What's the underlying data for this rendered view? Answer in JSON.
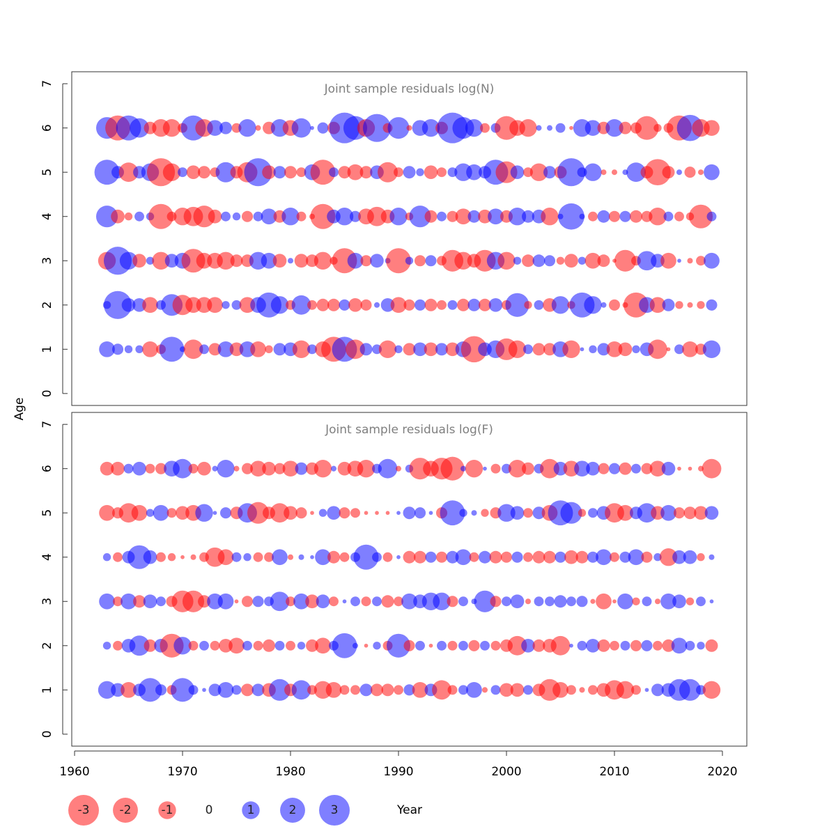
{
  "figure": {
    "xlabel": "Year",
    "ylabel": "Age",
    "positive_color": "#0000ff",
    "negative_color": "#ff0000",
    "alpha": 0.5,
    "legend": {
      "values": [
        -3,
        -2,
        -1,
        0,
        1,
        2,
        3
      ]
    }
  },
  "chart_data": [
    {
      "type": "bubble",
      "title": "Joint sample residuals log(N)",
      "x": [
        1963,
        1964,
        1965,
        1966,
        1967,
        1968,
        1969,
        1970,
        1971,
        1972,
        1973,
        1974,
        1975,
        1976,
        1977,
        1978,
        1979,
        1980,
        1981,
        1982,
        1983,
        1984,
        1985,
        1986,
        1987,
        1988,
        1989,
        1990,
        1991,
        1992,
        1993,
        1994,
        1995,
        1996,
        1997,
        1998,
        1999,
        2000,
        2001,
        2002,
        2003,
        2004,
        2005,
        2006,
        2007,
        2008,
        2009,
        2010,
        2011,
        2012,
        2013,
        2014,
        2015,
        2016,
        2017,
        2018,
        2019
      ],
      "y": [
        1,
        2,
        3,
        4,
        5,
        6
      ],
      "values": [
        [
          0.8,
          0.4,
          0.2,
          0.2,
          -0.8,
          -0.3,
          2,
          0.1,
          -1.2,
          0.3,
          -0.5,
          0.8,
          -0.6,
          0.8,
          -0.8,
          -0.2,
          0.5,
          0.6,
          -1,
          0.3,
          -0.8,
          -2,
          2,
          -1.2,
          0.5,
          0.3,
          -1,
          0.2,
          -0.5,
          0.6,
          -0.6,
          0.5,
          -0.6,
          0.8,
          -2.2,
          0.6,
          1,
          -1.5,
          -1,
          0.3,
          -0.5,
          -0.5,
          0.8,
          -1,
          0.05,
          0.2,
          0.5,
          -0.8,
          -0.6,
          0.2,
          0.6,
          -1.2,
          -0.05,
          0.3,
          -0.8,
          -0.4,
          1
        ],
        [
          0.2,
          2.5,
          0.6,
          0.6,
          -0.8,
          0.3,
          1.5,
          -1.3,
          -0.8,
          -0.8,
          -0.8,
          0.2,
          0.3,
          -0.8,
          0.8,
          2,
          1,
          -0.3,
          1.2,
          -0.3,
          -0.5,
          -0.5,
          0.4,
          -0.6,
          -0.4,
          0.1,
          0.6,
          -0.8,
          -0.4,
          0.4,
          -0.5,
          -0.3,
          0.3,
          -0.5,
          0.5,
          -0.5,
          0.6,
          -0.3,
          1.8,
          -0.2,
          0.3,
          -0.6,
          1,
          -0.2,
          2,
          1,
          0.1,
          -0.4,
          -0.1,
          -2,
          0.8,
          -0.8,
          0.5,
          -0.2,
          -0.1,
          -0.2,
          0.4
        ],
        [
          -1,
          2.5,
          1,
          -0.6,
          0.2,
          -1,
          0.6,
          0.8,
          -1.8,
          -0.8,
          -0.8,
          -1,
          -0.5,
          -0.5,
          1,
          0.8,
          -0.6,
          0.1,
          -0.6,
          -0.5,
          -1,
          -0.2,
          -2,
          0.8,
          -0.4,
          0.6,
          0.1,
          -2,
          0.2,
          -0.4,
          0.4,
          -0.3,
          -1.5,
          -1,
          -0.6,
          -1.5,
          1,
          -1,
          0.2,
          -0.5,
          0.5,
          0.4,
          -0.2,
          -0.6,
          0.2,
          -0.8,
          -0.5,
          -0.05,
          -1.5,
          -0.3,
          1.2,
          0.6,
          -0.8,
          0.05,
          -0.1,
          -0.3,
          0.8
        ],
        [
          1.5,
          -0.6,
          -0.2,
          0.3,
          0.2,
          -2,
          -0.3,
          -1,
          -1.2,
          -1.5,
          -0.6,
          0.3,
          0.2,
          -0.4,
          0.3,
          0.8,
          -0.5,
          1,
          -0.3,
          -0.1,
          -2,
          0.6,
          1,
          0.4,
          -0.8,
          -1.2,
          -0.6,
          1,
          -0.2,
          1.5,
          -0.5,
          0.3,
          -0.4,
          -0.8,
          0.5,
          -0.6,
          0.8,
          -0.5,
          1,
          0.5,
          0.6,
          -1,
          0.1,
          2.2,
          0.1,
          -0.3,
          0.5,
          -0.4,
          0.4,
          -0.5,
          -0.4,
          -1,
          0.3,
          -0.3,
          -0.2,
          -1.8,
          0.3
        ],
        [
          2,
          0.5,
          -1.2,
          0.5,
          1,
          -2.5,
          -1,
          0.3,
          -0.6,
          -0.5,
          -0.3,
          1.3,
          -0.5,
          -1.3,
          2.5,
          -0.6,
          0.5,
          -0.5,
          -0.3,
          0.8,
          -2,
          0.3,
          -0.5,
          -0.8,
          -0.5,
          0.6,
          -1.3,
          -0.3,
          0.5,
          0.2,
          -0.6,
          -0.3,
          0.3,
          1,
          0.8,
          0.5,
          2,
          -1.5,
          0.6,
          -0.3,
          -1,
          0.5,
          -0.5,
          2.5,
          0.3,
          1,
          -0.1,
          -0.1,
          0.1,
          1.2,
          -0.5,
          -2.2,
          -0.5,
          0.1,
          -0.4,
          -0.1,
          0.8
        ],
        [
          1.5,
          -2,
          2,
          1.2,
          -0.5,
          -1,
          -1,
          -0.3,
          2,
          -1,
          0.8,
          0.5,
          -0.3,
          1,
          -0.1,
          -0.5,
          1,
          -0.8,
          1.2,
          0.05,
          0.4,
          -0.5,
          3,
          1.8,
          -1,
          2.5,
          -0.3,
          1.5,
          -0.1,
          0.8,
          1,
          -0.5,
          3,
          1.5,
          1,
          -0.3,
          0.3,
          -1.8,
          -0.8,
          -1,
          0.1,
          0.1,
          0.3,
          -0.05,
          1,
          0.8,
          -0.5,
          1,
          -0.5,
          -0.4,
          -1.8,
          -0.2,
          -0.3,
          -2,
          2.2,
          -1,
          -0.8
        ]
      ],
      "xlim": [
        1959.74,
        2022.26
      ],
      "ylim": [
        -0.27,
        7.27
      ],
      "yticks": [
        0,
        1,
        2,
        3,
        4,
        5,
        6,
        7
      ]
    },
    {
      "type": "bubble",
      "title": "Joint sample residuals log(F)",
      "x": [
        1963,
        1964,
        1965,
        1966,
        1967,
        1968,
        1969,
        1970,
        1971,
        1972,
        1973,
        1974,
        1975,
        1976,
        1977,
        1978,
        1979,
        1980,
        1981,
        1982,
        1983,
        1984,
        1985,
        1986,
        1987,
        1988,
        1989,
        1990,
        1991,
        1992,
        1993,
        1994,
        1995,
        1996,
        1997,
        1998,
        1999,
        2000,
        2001,
        2002,
        2003,
        2004,
        2005,
        2006,
        2007,
        2008,
        2009,
        2010,
        2011,
        2012,
        2013,
        2014,
        2015,
        2016,
        2017,
        2018,
        2019
      ],
      "y": [
        1,
        2,
        3,
        4,
        5,
        6
      ],
      "values": [
        [
          1,
          0.6,
          -0.8,
          0.5,
          1.8,
          0.4,
          -0.3,
          1.8,
          0.3,
          0.05,
          0.5,
          0.8,
          0.3,
          -0.5,
          0.5,
          -0.6,
          1.5,
          -0.5,
          1.2,
          -0.3,
          -1,
          -0.8,
          -0.3,
          -0.3,
          0.5,
          -0.5,
          -0.5,
          -0.3,
          0.4,
          -0.8,
          0.5,
          -1.2,
          -0.3,
          0.3,
          0.8,
          -0.1,
          0.3,
          -0.6,
          -0.6,
          0.3,
          -0.5,
          -1.5,
          -0.8,
          -0.3,
          -0.1,
          -0.3,
          -0.6,
          -1.2,
          -1,
          -0.3,
          0.05,
          0.5,
          0.6,
          1.5,
          1.5,
          0.3,
          -1
        ],
        [
          0.2,
          -0.3,
          0.6,
          1.3,
          -0.5,
          0.6,
          -1.8,
          1,
          -0.3,
          0.3,
          -0.3,
          -0.6,
          -0.8,
          0.3,
          -0.3,
          -0.5,
          0.3,
          -0.3,
          0.2,
          -0.5,
          -0.8,
          0.3,
          2,
          0.1,
          -0.05,
          0.2,
          -0.3,
          1.8,
          -0.4,
          0.3,
          -0.05,
          0.3,
          -0.3,
          0.3,
          -0.4,
          0.3,
          -0.3,
          -0.5,
          -1.2,
          0.6,
          -0.5,
          -0.6,
          -1.2,
          0.05,
          0.3,
          0.6,
          -0.5,
          -0.3,
          0.3,
          -0.4,
          0.4,
          -0.3,
          -0.5,
          0.8,
          0.3,
          0.2,
          -0.5
        ],
        [
          0.8,
          -0.3,
          0.8,
          -0.5,
          0.6,
          0.3,
          -0.4,
          -1.5,
          -1.5,
          -0.5,
          0.8,
          0.8,
          -0.05,
          -0.4,
          0.4,
          0.3,
          1.2,
          -0.3,
          0.8,
          -0.6,
          0.6,
          -0.3,
          0.05,
          0.3,
          -0.3,
          0.3,
          -0.5,
          -0.3,
          0.8,
          0.6,
          1,
          1,
          -0.4,
          0.3,
          0.1,
          1.5,
          -0.4,
          0.3,
          0.6,
          -0.1,
          0.3,
          0.3,
          0.5,
          0.3,
          0.4,
          -0.08,
          -0.8,
          -0.05,
          0.8,
          -0.2,
          0.3,
          -0.1,
          0.8,
          0.6,
          -0.2,
          0.3,
          0.05
        ],
        [
          0.2,
          -0.3,
          0.5,
          1.8,
          0.6,
          -0.3,
          -0.2,
          -0.05,
          -0.1,
          -0.3,
          -1.2,
          -0.8,
          0.3,
          0.2,
          -0.3,
          -0.3,
          0.8,
          -0.1,
          0.1,
          0.05,
          0.8,
          -0.5,
          -0.3,
          0.3,
          2,
          0.3,
          -0.3,
          0.05,
          -0.5,
          -0.5,
          0.4,
          -0.4,
          0.5,
          0.8,
          -0.3,
          0.5,
          -0.5,
          -0.4,
          0.4,
          -0.3,
          -0.5,
          -0.5,
          0.4,
          -0.6,
          -0.5,
          0.4,
          0.8,
          -0.3,
          0.4,
          0.8,
          -0.4,
          0.2,
          -1,
          0.6,
          0.6,
          -0.2,
          0.1
        ],
        [
          -0.8,
          -0.4,
          -1.2,
          -0.8,
          0.2,
          0.8,
          -0.3,
          -0.6,
          -0.8,
          1,
          0.05,
          0.4,
          -0.5,
          1.2,
          -1.5,
          -0.5,
          -1.2,
          -0.6,
          -0.4,
          -0.05,
          0.2,
          0.6,
          -0.4,
          -0.3,
          -0.05,
          -0.05,
          -0.05,
          0.05,
          0.5,
          0.4,
          0.05,
          -0.4,
          2,
          0.2,
          0.1,
          -0.2,
          -0.4,
          1,
          0.6,
          -0.3,
          0.5,
          -0.8,
          2,
          1.5,
          -0.2,
          0.3,
          0.6,
          -1.2,
          -0.8,
          0.5,
          1.2,
          -0.6,
          0.8,
          -0.4,
          -0.5,
          -0.6,
          0.6
        ],
        [
          -0.6,
          -0.6,
          0.3,
          0.6,
          -0.3,
          -0.4,
          0.8,
          1.2,
          -0.3,
          -0.6,
          0.1,
          1,
          -0.1,
          -0.4,
          -0.8,
          -0.6,
          -0.4,
          -0.8,
          0.5,
          -0.5,
          -1,
          0.1,
          -0.6,
          -0.8,
          -1,
          0.3,
          1.2,
          -0.1,
          0.2,
          -1.5,
          -0.8,
          -1.5,
          -1.8,
          0.1,
          -1,
          0.05,
          -0.3,
          0.3,
          -1,
          -0.5,
          0.3,
          -1.2,
          0.6,
          -0.8,
          0.8,
          0.6,
          -0.4,
          0.4,
          -0.5,
          0.3,
          -0.4,
          -0.8,
          0.6,
          -0.05,
          -0.05,
          -0.1,
          -1.2
        ]
      ],
      "xlim": [
        1959.74,
        2022.26
      ],
      "ylim": [
        -0.27,
        7.27
      ],
      "yticks": [
        0,
        1,
        2,
        3,
        4,
        5,
        6,
        7
      ],
      "xticks": [
        1960,
        1970,
        1980,
        1990,
        2000,
        2010,
        2020
      ]
    }
  ]
}
